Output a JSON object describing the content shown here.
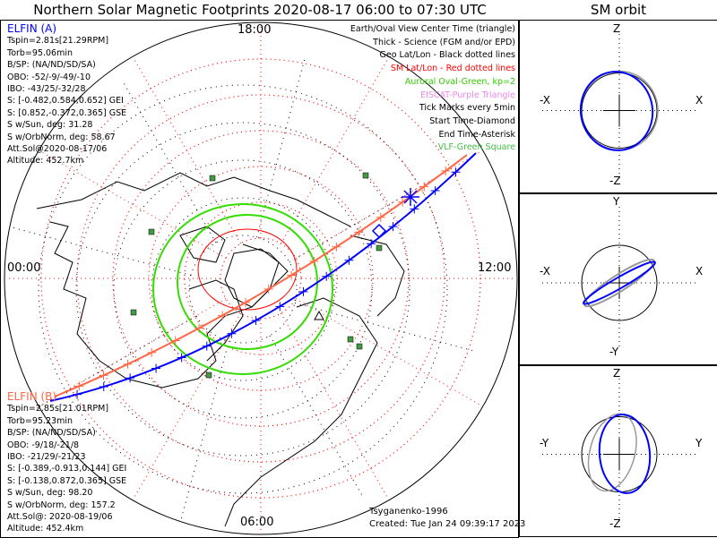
{
  "title": "Northern Solar Magnetic Footprints 2020-08-17 06:00 to 07:30 UTC",
  "sm_orbit_title": "SM orbit",
  "time_labels": {
    "top": "18:00",
    "left": "00:00",
    "right": "12:00",
    "bottom": "06:00"
  },
  "elfin_a": {
    "name": "ELFIN (A)",
    "lines": [
      "Tspin=2.81s[21.29RPM]",
      "Torb=95.06min",
      "B/SP: (NA/ND/SD/SA)",
      "OBO: -52/-9/-49/-10",
      "IBO: -43/25/-32/28",
      "S: [-0.482,0.584,0.652] GEI",
      "S: [0.852,-0.372,0.365] GSE",
      "S w/Sun, deg: 31.28",
      "S w/OrbNorm, deg: 58.67",
      "Att.Sol@2020-08-17/06",
      "Altitude: 452.7km"
    ]
  },
  "elfin_b": {
    "name": "ELFIN (B)",
    "lines": [
      "Tspin=2.85s[21.01RPM]",
      "Torb=95.23min",
      "B/SP: (NA/ND/SD/SA)",
      "OBO: -9/18/-21/8",
      "IBO: -21/29/-21/23",
      "S: [-0.389,-0.913,0.144] GEI",
      "S: [-0.138,0.872,0.365] GSE",
      "S w/Sun, deg: 98.20",
      "S w/OrbNorm, deg: 157.2",
      "Att.Sol@: 2020-08-19/06",
      "Altitude: 452.4km"
    ]
  },
  "legend": [
    {
      "text": "Earth/Oval View Center Time (triangle)",
      "color": "#000000"
    },
    {
      "text": "Thick - Science (FGM and/or EPD)",
      "color": "#000000"
    },
    {
      "text": "Geo Lat/Lon - Black dotted lines",
      "color": "#000000"
    },
    {
      "text": "SM Lat/Lon - Red dotted lines",
      "color": "#ff0000"
    },
    {
      "text": "Auroral Oval-Green, kp=2",
      "color": "#33cc00"
    },
    {
      "text": "EISCAT-Purple Triangle",
      "color": "#ee88ee"
    },
    {
      "text": "Tick Marks every 5min",
      "color": "#000000"
    },
    {
      "text": "Start Time-Diamond",
      "color": "#000000"
    },
    {
      "text": "End Time-Asterisk",
      "color": "#000000"
    },
    {
      "text": "VLF-Green Square",
      "color": "#44bb44"
    }
  ],
  "footer": {
    "model": "Tsyganenko-1996",
    "created": "Created: Tue Jan 24 09:39:17 2023"
  },
  "panels": [
    {
      "top": "Z",
      "bottom": "-Z",
      "left": "-X",
      "right": "X"
    },
    {
      "top": "Y",
      "bottom": "-Y",
      "left": "-X",
      "right": "X"
    },
    {
      "top": "Z",
      "bottom": "-Z",
      "left": "-Y",
      "right": "Y"
    }
  ],
  "colors": {
    "elfin_a": "#0000ff",
    "elfin_b": "#ff6644",
    "oval": "#33dd00",
    "sm_grid": "#ff0000"
  }
}
